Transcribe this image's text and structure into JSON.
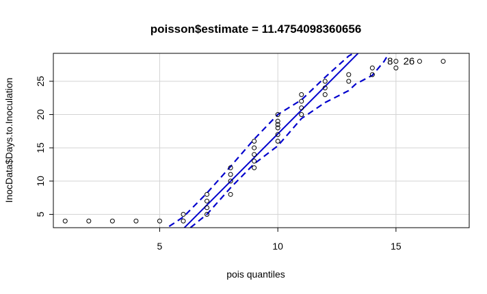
{
  "chart_data": {
    "type": "scatter",
    "title": "poisson$estimate = 11.4754098360656",
    "xlabel": "pois quantiles",
    "ylabel": "InocData$Days.to.Inoculation",
    "xlim": [
      0.5,
      18.1
    ],
    "ylim": [
      3.0,
      29.2
    ],
    "xticks": [
      5,
      10,
      15
    ],
    "yticks": [
      5,
      10,
      15,
      20,
      25
    ],
    "grid": true,
    "points": [
      {
        "x": 1,
        "y": 4
      },
      {
        "x": 2,
        "y": 4
      },
      {
        "x": 3,
        "y": 4
      },
      {
        "x": 4,
        "y": 4
      },
      {
        "x": 5,
        "y": 4
      },
      {
        "x": 6,
        "y": 4
      },
      {
        "x": 6,
        "y": 5
      },
      {
        "x": 7,
        "y": 5
      },
      {
        "x": 7,
        "y": 6
      },
      {
        "x": 7,
        "y": 7
      },
      {
        "x": 7,
        "y": 8
      },
      {
        "x": 8,
        "y": 8
      },
      {
        "x": 8,
        "y": 10
      },
      {
        "x": 8,
        "y": 11
      },
      {
        "x": 8,
        "y": 12
      },
      {
        "x": 9,
        "y": 12
      },
      {
        "x": 9,
        "y": 13
      },
      {
        "x": 9,
        "y": 14
      },
      {
        "x": 9,
        "y": 15
      },
      {
        "x": 9,
        "y": 16
      },
      {
        "x": 10,
        "y": 16
      },
      {
        "x": 10,
        "y": 17
      },
      {
        "x": 10,
        "y": 18
      },
      {
        "x": 10,
        "y": 18.5
      },
      {
        "x": 10,
        "y": 19
      },
      {
        "x": 10,
        "y": 20
      },
      {
        "x": 11,
        "y": 20
      },
      {
        "x": 11,
        "y": 21
      },
      {
        "x": 11,
        "y": 22
      },
      {
        "x": 11,
        "y": 23
      },
      {
        "x": 12,
        "y": 23
      },
      {
        "x": 12,
        "y": 24
      },
      {
        "x": 12,
        "y": 25
      },
      {
        "x": 13,
        "y": 25
      },
      {
        "x": 13,
        "y": 26
      },
      {
        "x": 14,
        "y": 26
      },
      {
        "x": 14,
        "y": 27
      },
      {
        "x": 15,
        "y": 27
      },
      {
        "x": 15,
        "y": 28
      },
      {
        "x": 16,
        "y": 28
      },
      {
        "x": 17,
        "y": 28
      }
    ],
    "point_labels": [
      {
        "text": "8",
        "x": 14.75,
        "y": 28
      },
      {
        "text": "26",
        "x": 15.55,
        "y": 28
      }
    ],
    "reference_line": {
      "color": "#0000cd",
      "points": [
        {
          "x": 5.4,
          "y": 0.7
        },
        {
          "x": 13.9,
          "y": 31.0
        }
      ]
    },
    "envelope_upper": {
      "color": "#0000cd",
      "points": [
        {
          "x": 5.4,
          "y": 3.2
        },
        {
          "x": 6,
          "y": 4.6
        },
        {
          "x": 7,
          "y": 8.2
        },
        {
          "x": 8,
          "y": 12.2
        },
        {
          "x": 9,
          "y": 16.3
        },
        {
          "x": 10,
          "y": 20.0
        },
        {
          "x": 11,
          "y": 22.2
        },
        {
          "x": 12,
          "y": 25.6
        },
        {
          "x": 13,
          "y": 28.8
        },
        {
          "x": 13.2,
          "y": 29.2
        }
      ]
    },
    "envelope_lower": {
      "color": "#0000cd",
      "points": [
        {
          "x": 6.3,
          "y": 3.0
        },
        {
          "x": 7,
          "y": 5.0
        },
        {
          "x": 8,
          "y": 9.0
        },
        {
          "x": 9,
          "y": 12.6
        },
        {
          "x": 10,
          "y": 15.3
        },
        {
          "x": 11,
          "y": 19.4
        },
        {
          "x": 12,
          "y": 21.8
        },
        {
          "x": 13,
          "y": 23.6
        },
        {
          "x": 13.3,
          "y": 24.6
        },
        {
          "x": 14,
          "y": 25.9
        },
        {
          "x": 14.5,
          "y": 28.0
        },
        {
          "x": 14.7,
          "y": 29.2
        }
      ]
    }
  }
}
